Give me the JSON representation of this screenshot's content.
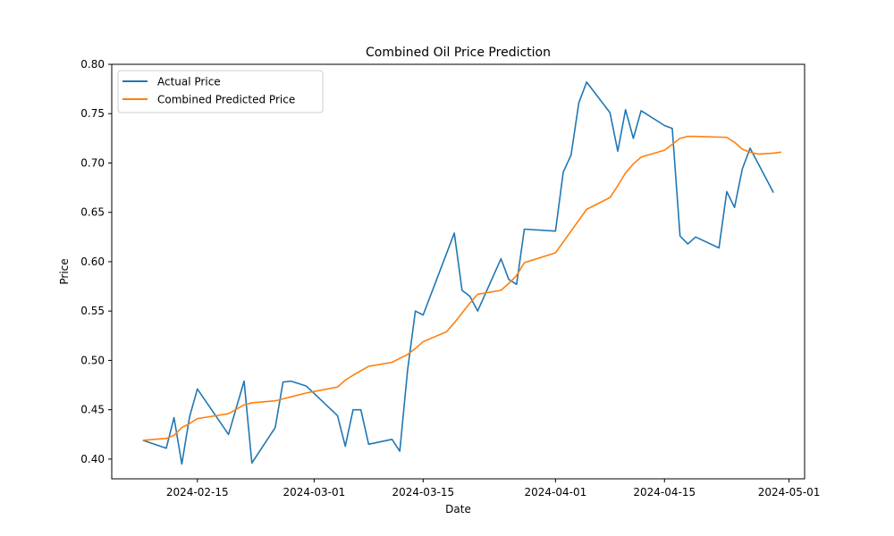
{
  "chart_data": {
    "type": "line",
    "title": "Combined Oil Price Prediction",
    "xlabel": "Date",
    "ylabel": "Price",
    "xlim": [
      "2024-02-04",
      "2024-05-03"
    ],
    "ylim": [
      0.38,
      0.8
    ],
    "x_ticks": [
      "2024-02-15",
      "2024-03-01",
      "2024-03-15",
      "2024-04-01",
      "2024-04-15",
      "2024-05-01"
    ],
    "y_ticks": [
      "0.40",
      "0.45",
      "0.50",
      "0.55",
      "0.60",
      "0.65",
      "0.70",
      "0.75",
      "0.80"
    ],
    "legend_position": "top-left",
    "grid": false,
    "series": [
      {
        "name": "Actual Price",
        "color": "#1f77b4",
        "points": [
          [
            "2024-02-08",
            0.419
          ],
          [
            "2024-02-11",
            0.411
          ],
          [
            "2024-02-12",
            0.442
          ],
          [
            "2024-02-13",
            0.395
          ],
          [
            "2024-02-14",
            0.443
          ],
          [
            "2024-02-15",
            0.471
          ],
          [
            "2024-02-19",
            0.425
          ],
          [
            "2024-02-21",
            0.479
          ],
          [
            "2024-02-22",
            0.396
          ],
          [
            "2024-02-25",
            0.432
          ],
          [
            "2024-02-26",
            0.478
          ],
          [
            "2024-02-27",
            0.479
          ],
          [
            "2024-02-29",
            0.474
          ],
          [
            "2024-03-04",
            0.444
          ],
          [
            "2024-03-05",
            0.413
          ],
          [
            "2024-03-06",
            0.45
          ],
          [
            "2024-03-07",
            0.45
          ],
          [
            "2024-03-08",
            0.415
          ],
          [
            "2024-03-11",
            0.42
          ],
          [
            "2024-03-12",
            0.408
          ],
          [
            "2024-03-13",
            0.49
          ],
          [
            "2024-03-14",
            0.55
          ],
          [
            "2024-03-15",
            0.546
          ],
          [
            "2024-03-19",
            0.629
          ],
          [
            "2024-03-20",
            0.571
          ],
          [
            "2024-03-21",
            0.565
          ],
          [
            "2024-03-22",
            0.55
          ],
          [
            "2024-03-25",
            0.603
          ],
          [
            "2024-03-26",
            0.582
          ],
          [
            "2024-03-27",
            0.577
          ],
          [
            "2024-03-28",
            0.633
          ],
          [
            "2024-04-01",
            0.631
          ],
          [
            "2024-04-02",
            0.691
          ],
          [
            "2024-04-03",
            0.708
          ],
          [
            "2024-04-04",
            0.761
          ],
          [
            "2024-04-05",
            0.782
          ],
          [
            "2024-04-08",
            0.751
          ],
          [
            "2024-04-09",
            0.712
          ],
          [
            "2024-04-10",
            0.754
          ],
          [
            "2024-04-11",
            0.725
          ],
          [
            "2024-04-12",
            0.753
          ],
          [
            "2024-04-15",
            0.738
          ],
          [
            "2024-04-16",
            0.735
          ],
          [
            "2024-04-17",
            0.626
          ],
          [
            "2024-04-18",
            0.618
          ],
          [
            "2024-04-19",
            0.625
          ],
          [
            "2024-04-22",
            0.614
          ],
          [
            "2024-04-23",
            0.671
          ],
          [
            "2024-04-24",
            0.655
          ],
          [
            "2024-04-25",
            0.694
          ],
          [
            "2024-04-26",
            0.715
          ],
          [
            "2024-04-29",
            0.67
          ]
        ]
      },
      {
        "name": "Combined Predicted Price",
        "color": "#ff7f0e",
        "points": [
          [
            "2024-02-08",
            0.419
          ],
          [
            "2024-02-11",
            0.421
          ],
          [
            "2024-02-12",
            0.424
          ],
          [
            "2024-02-13",
            0.432
          ],
          [
            "2024-02-14",
            0.436
          ],
          [
            "2024-02-15",
            0.441
          ],
          [
            "2024-02-19",
            0.446
          ],
          [
            "2024-02-21",
            0.455
          ],
          [
            "2024-02-22",
            0.457
          ],
          [
            "2024-02-25",
            0.459
          ],
          [
            "2024-02-26",
            0.461
          ],
          [
            "2024-02-27",
            0.463
          ],
          [
            "2024-02-29",
            0.467
          ],
          [
            "2024-03-02",
            0.47
          ],
          [
            "2024-03-04",
            0.473
          ],
          [
            "2024-03-05",
            0.48
          ],
          [
            "2024-03-06",
            0.485
          ],
          [
            "2024-03-08",
            0.494
          ],
          [
            "2024-03-11",
            0.498
          ],
          [
            "2024-03-12",
            0.502
          ],
          [
            "2024-03-13",
            0.506
          ],
          [
            "2024-03-14",
            0.512
          ],
          [
            "2024-03-15",
            0.519
          ],
          [
            "2024-03-18",
            0.529
          ],
          [
            "2024-03-19",
            0.538
          ],
          [
            "2024-03-20",
            0.548
          ],
          [
            "2024-03-21",
            0.558
          ],
          [
            "2024-03-22",
            0.567
          ],
          [
            "2024-03-25",
            0.571
          ],
          [
            "2024-03-26",
            0.578
          ],
          [
            "2024-03-27",
            0.586
          ],
          [
            "2024-03-28",
            0.599
          ],
          [
            "2024-04-01",
            0.609
          ],
          [
            "2024-04-02",
            0.62
          ],
          [
            "2024-04-05",
            0.653
          ],
          [
            "2024-04-08",
            0.665
          ],
          [
            "2024-04-09",
            0.677
          ],
          [
            "2024-04-10",
            0.69
          ],
          [
            "2024-04-11",
            0.699
          ],
          [
            "2024-04-12",
            0.706
          ],
          [
            "2024-04-15",
            0.713
          ],
          [
            "2024-04-16",
            0.719
          ],
          [
            "2024-04-17",
            0.725
          ],
          [
            "2024-04-18",
            0.727
          ],
          [
            "2024-04-19",
            0.727
          ],
          [
            "2024-04-23",
            0.726
          ],
          [
            "2024-04-24",
            0.721
          ],
          [
            "2024-04-25",
            0.714
          ],
          [
            "2024-04-26",
            0.711
          ],
          [
            "2024-04-27",
            0.709
          ],
          [
            "2024-04-29",
            0.71
          ],
          [
            "2024-04-30",
            0.711
          ]
        ]
      }
    ]
  }
}
